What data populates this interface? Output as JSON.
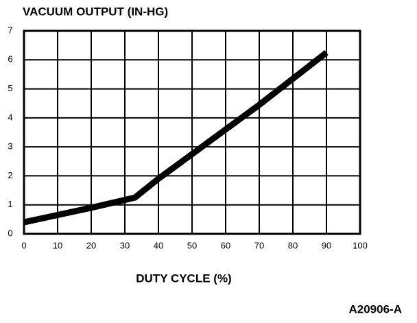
{
  "chart_data": {
    "type": "line",
    "title": "VACUUM OUTPUT (IN-HG)",
    "xlabel": "DUTY CYCLE (%)",
    "annotation": "A20906-A",
    "x": [
      0,
      10,
      20,
      33,
      40,
      50,
      60,
      70,
      80,
      90
    ],
    "series": [
      {
        "name": "Vacuum output",
        "color": "#000000",
        "values": [
          0.4,
          0.65,
          0.9,
          1.25,
          1.9,
          2.75,
          3.6,
          4.45,
          5.35,
          6.25
        ]
      }
    ],
    "xlim": [
      0,
      100
    ],
    "xticks": [
      0,
      10,
      20,
      30,
      40,
      50,
      60,
      70,
      80,
      90,
      100
    ],
    "ylim": [
      0,
      7
    ],
    "yticks": [
      0,
      1,
      2,
      3,
      4,
      5,
      6,
      7
    ],
    "grid": true
  }
}
